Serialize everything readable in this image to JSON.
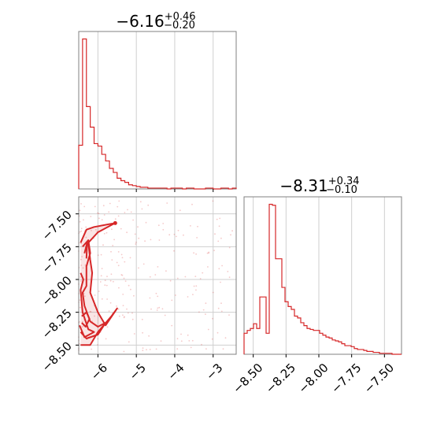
{
  "chart_data": [
    {
      "type": "histogram",
      "panel": "top-left",
      "title": {
        "median": "−6.16",
        "upper": "+0.46",
        "lower": "−0.20"
      },
      "xlim": [
        -6.5,
        -2.4
      ],
      "grid": true,
      "color": "#d62728",
      "bin_edges_start": -6.5,
      "bin_width": 0.1,
      "counts": [
        53,
        182,
        100,
        75,
        55,
        52,
        42,
        34,
        25,
        20,
        13,
        10,
        8,
        5,
        4,
        3,
        2,
        2,
        1,
        1,
        1,
        1,
        1,
        0,
        1,
        1,
        1,
        0,
        1,
        1,
        0,
        0,
        0,
        1,
        1,
        0,
        0,
        1,
        1,
        0,
        1
      ]
    },
    {
      "type": "scatter-contour",
      "panel": "bottom-left",
      "xlim": [
        -6.5,
        -2.4
      ],
      "ylim": [
        -8.57,
        -7.37
      ],
      "xticks": [
        -6,
        -5,
        -4,
        -3
      ],
      "xtick_labels": [
        "−6",
        "−5",
        "−4",
        "−3"
      ],
      "yticks": [
        -7.5,
        -7.75,
        -8.0,
        -8.25,
        -8.5
      ],
      "ytick_labels": [
        "−7.50",
        "−7.75",
        "−8.00",
        "−8.25",
        "−8.50"
      ],
      "grid": true,
      "color": "#d62728",
      "contour_levels": 3,
      "point_count": 260
    },
    {
      "type": "histogram",
      "panel": "bottom-right",
      "title": {
        "median": "−8.31",
        "upper": "+0.34",
        "lower": "−0.10"
      },
      "xlim": [
        -8.57,
        -7.37
      ],
      "xticks": [
        -8.5,
        -8.25,
        -8.0,
        -7.75,
        -7.5
      ],
      "xtick_labels": [
        "−8.50",
        "−8.25",
        "−8.00",
        "−7.75",
        "−7.50"
      ],
      "grid": true,
      "color": "#d62728",
      "bin_edges_start": -8.57,
      "bin_width": 0.024,
      "counts": [
        22,
        25,
        27,
        32,
        27,
        60,
        60,
        22,
        157,
        156,
        100,
        100,
        70,
        55,
        50,
        47,
        40,
        38,
        33,
        30,
        27,
        26,
        25,
        25,
        22,
        20,
        18,
        17,
        15,
        14,
        13,
        11,
        9,
        9,
        8,
        6,
        5,
        5,
        4,
        3,
        3,
        2,
        2,
        1,
        1,
        1,
        1,
        0,
        0,
        0
      ]
    }
  ]
}
